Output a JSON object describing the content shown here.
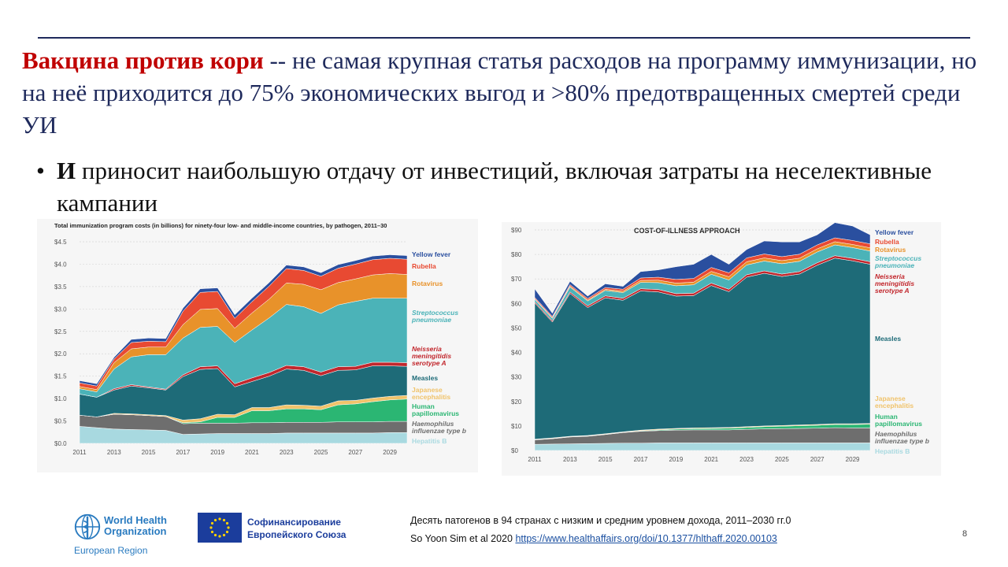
{
  "slide": {
    "headline_highlight": "Вакцина против кори",
    "headline_rest": " -- не самая крупная статья расходов на программу иммунизации, но на неё приходится до 75% экономических выгод и >80% предотвращенных смертей среди УИ",
    "bullet_bold": "И",
    "bullet_rest": " приносит наибольшую отдачу от инвестиций, включая затраты на неселективные кампании",
    "who_name_1": "World Health",
    "who_name_2": "Organization",
    "who_region": "European Region",
    "eu_line_1": "Софинансирование",
    "eu_line_2": "Европейского Союза",
    "caption_line_1": "Десять патогенов в 94 странах с низким и средним уровнем дохода, 2011–2030 гг.0",
    "caption_line_2_prefix": "So Yoon Sim et al 2020 ",
    "caption_link": "https://www.healthaffairs.org/doi/10.1377/hlthaff.2020.00103",
    "page_number": "8"
  },
  "colors": {
    "Hepatitis B": "#a8d9e0",
    "Haemophilus influenzae type b": "#6e6e6e",
    "Human papillomavirus": "#2bb673",
    "Japanese encephalitis": "#f0c36b",
    "Measles": "#1e6b78",
    "Neisseria meningitidis serotype A": "#c2272d",
    "Streptococcus pneumoniae": "#4bb3b8",
    "Rotavirus": "#e8922a",
    "Rubella": "#e84a32",
    "Yellow fever": "#2a4f9f"
  },
  "chart_data": [
    {
      "type": "area",
      "title": "Total immunization program costs (in billions) for ninety-four low- and middle-income countries, by pathogen, 2011–30",
      "x": [
        2011,
        2012,
        2013,
        2014,
        2015,
        2016,
        2017,
        2018,
        2019,
        2020,
        2021,
        2022,
        2023,
        2024,
        2025,
        2026,
        2027,
        2028,
        2029,
        2030
      ],
      "x_ticks": [
        "2011",
        "2013",
        "2015",
        "2017",
        "2019",
        "2021",
        "2023",
        "2025",
        "2027",
        "2029"
      ],
      "y_ticks": [
        "$0.0",
        "$0.5",
        "$1.0",
        "$1.5",
        "$2.0",
        "$2.5",
        "$3.0",
        "$3.5",
        "$4.0",
        "$4.5"
      ],
      "ylim": [
        0,
        4.5
      ],
      "series": [
        {
          "name": "Hepatitis B",
          "values": [
            0.38,
            0.35,
            0.32,
            0.31,
            0.3,
            0.29,
            0.2,
            0.21,
            0.22,
            0.22,
            0.22,
            0.22,
            0.23,
            0.23,
            0.23,
            0.23,
            0.23,
            0.23,
            0.24,
            0.24
          ]
        },
        {
          "name": "Haemophilus influenzae type b",
          "values": [
            0.25,
            0.24,
            0.33,
            0.33,
            0.32,
            0.31,
            0.24,
            0.24,
            0.23,
            0.23,
            0.24,
            0.24,
            0.24,
            0.24,
            0.24,
            0.25,
            0.25,
            0.25,
            0.25,
            0.25
          ]
        },
        {
          "name": "Human papillomavirus",
          "values": [
            0.0,
            0.0,
            0.0,
            0.0,
            0.0,
            0.0,
            0.02,
            0.03,
            0.13,
            0.13,
            0.27,
            0.27,
            0.3,
            0.3,
            0.28,
            0.38,
            0.4,
            0.45,
            0.48,
            0.5
          ]
        },
        {
          "name": "Japanese encephalitis",
          "values": [
            0.0,
            0.0,
            0.02,
            0.02,
            0.02,
            0.02,
            0.06,
            0.07,
            0.07,
            0.06,
            0.07,
            0.07,
            0.09,
            0.08,
            0.08,
            0.09,
            0.08,
            0.08,
            0.08,
            0.08
          ]
        },
        {
          "name": "Measles",
          "values": [
            0.47,
            0.44,
            0.52,
            0.62,
            0.6,
            0.57,
            0.97,
            1.1,
            1.02,
            0.62,
            0.58,
            0.7,
            0.8,
            0.78,
            0.68,
            0.68,
            0.68,
            0.72,
            0.68,
            0.65
          ]
        },
        {
          "name": "Neisseria meningitidis serotype A",
          "values": [
            0.0,
            0.0,
            0.03,
            0.03,
            0.02,
            0.02,
            0.04,
            0.06,
            0.06,
            0.07,
            0.08,
            0.08,
            0.08,
            0.08,
            0.08,
            0.08,
            0.08,
            0.08,
            0.08,
            0.08
          ]
        },
        {
          "name": "Streptococcus pneumoniae",
          "values": [
            0.12,
            0.12,
            0.44,
            0.62,
            0.72,
            0.77,
            0.82,
            0.88,
            0.88,
            0.92,
            1.07,
            1.22,
            1.36,
            1.34,
            1.31,
            1.38,
            1.45,
            1.43,
            1.43,
            1.44
          ]
        },
        {
          "name": "Rotavirus",
          "values": [
            0.05,
            0.05,
            0.14,
            0.18,
            0.17,
            0.17,
            0.3,
            0.4,
            0.4,
            0.32,
            0.38,
            0.42,
            0.48,
            0.5,
            0.53,
            0.5,
            0.5,
            0.52,
            0.55,
            0.53
          ]
        },
        {
          "name": "Rubella",
          "values": [
            0.08,
            0.08,
            0.08,
            0.14,
            0.13,
            0.12,
            0.3,
            0.38,
            0.38,
            0.22,
            0.25,
            0.29,
            0.32,
            0.31,
            0.3,
            0.32,
            0.33,
            0.34,
            0.34,
            0.34
          ]
        },
        {
          "name": "Yellow fever",
          "values": [
            0.05,
            0.05,
            0.04,
            0.07,
            0.07,
            0.07,
            0.07,
            0.08,
            0.08,
            0.08,
            0.08,
            0.08,
            0.08,
            0.08,
            0.08,
            0.08,
            0.08,
            0.08,
            0.08,
            0.08
          ]
        }
      ],
      "legend_position": "right"
    },
    {
      "type": "area",
      "title": "COST-OF-ILLNESS APPROACH",
      "x": [
        2011,
        2012,
        2013,
        2014,
        2015,
        2016,
        2017,
        2018,
        2019,
        2020,
        2021,
        2022,
        2023,
        2024,
        2025,
        2026,
        2027,
        2028,
        2029,
        2030
      ],
      "x_ticks": [
        "2011",
        "2013",
        "2015",
        "2017",
        "2019",
        "2021",
        "2023",
        "2025",
        "2027",
        "2029"
      ],
      "y_ticks": [
        "$0",
        "$10",
        "$20",
        "$30",
        "$40",
        "$50",
        "$60",
        "$70",
        "$80",
        "$90"
      ],
      "ylim": [
        0,
        90
      ],
      "series": [
        {
          "name": "Hepatitis B",
          "values": [
            2.5,
            2.6,
            2.7,
            2.8,
            2.9,
            3.0,
            3.0,
            3.1,
            3.1,
            3.1,
            3.1,
            3.1,
            3.1,
            3.1,
            3.1,
            3.1,
            3.1,
            3.1,
            3.1,
            3.1
          ]
        },
        {
          "name": "Haemophilus influenzae type b",
          "values": [
            1.8,
            2.2,
            2.8,
            3.0,
            3.6,
            4.3,
            4.8,
            5.0,
            5.2,
            5.3,
            5.3,
            5.3,
            5.5,
            5.7,
            5.8,
            5.9,
            6.0,
            6.2,
            6.1,
            6.1
          ]
        },
        {
          "name": "Human papillomavirus",
          "values": [
            0.1,
            0.1,
            0.1,
            0.1,
            0.1,
            0.1,
            0.2,
            0.3,
            0.4,
            0.5,
            0.6,
            0.7,
            0.8,
            0.9,
            1.0,
            1.1,
            1.2,
            1.3,
            1.4,
            1.5
          ]
        },
        {
          "name": "Japanese encephalitis",
          "values": [
            0.2,
            0.2,
            0.2,
            0.2,
            0.2,
            0.2,
            0.3,
            0.3,
            0.3,
            0.3,
            0.3,
            0.3,
            0.3,
            0.3,
            0.3,
            0.3,
            0.3,
            0.3,
            0.3,
            0.3
          ]
        },
        {
          "name": "Measles",
          "values": [
            55.6,
            47.3,
            58.3,
            52.2,
            55.5,
            53.7,
            56.8,
            56.0,
            54.0,
            54.0,
            58.0,
            55.4,
            61.0,
            62.3,
            60.8,
            61.6,
            65.0,
            67.6,
            66.5,
            65.0
          ]
        },
        {
          "name": "Neisseria meningitidis serotype A",
          "values": [
            0.5,
            0.5,
            0.6,
            0.7,
            0.8,
            0.8,
            0.9,
            1.0,
            1.0,
            1.0,
            1.0,
            1.0,
            1.0,
            1.0,
            1.0,
            1.0,
            1.0,
            1.0,
            1.0,
            1.0
          ]
        },
        {
          "name": "Streptococcus pneumoniae",
          "values": [
            1.0,
            1.0,
            2.0,
            2.0,
            2.2,
            2.3,
            2.6,
            2.8,
            3.2,
            3.4,
            3.6,
            3.8,
            4.0,
            4.0,
            4.2,
            4.2,
            4.4,
            4.4,
            4.4,
            4.4
          ]
        },
        {
          "name": "Rotavirus",
          "values": [
            0.3,
            0.3,
            0.4,
            0.4,
            0.5,
            0.6,
            0.8,
            1.0,
            1.1,
            1.1,
            1.2,
            1.3,
            1.3,
            1.3,
            1.3,
            1.3,
            1.3,
            1.3,
            1.3,
            1.3
          ]
        },
        {
          "name": "Rubella",
          "values": [
            0.5,
            0.5,
            0.6,
            0.6,
            0.7,
            0.8,
            1.0,
            1.2,
            1.5,
            1.5,
            1.6,
            1.6,
            1.6,
            1.6,
            1.6,
            1.6,
            1.6,
            1.6,
            1.6,
            1.6
          ]
        },
        {
          "name": "Yellow fever",
          "values": [
            3.5,
            1.3,
            1.3,
            1.0,
            1.5,
            1.2,
            2.6,
            3.0,
            5.2,
            5.8,
            5.3,
            3.5,
            3.4,
            5.3,
            6.0,
            5.0,
            4.1,
            6.2,
            5.9,
            3.7
          ]
        }
      ],
      "legend_position": "right"
    }
  ]
}
